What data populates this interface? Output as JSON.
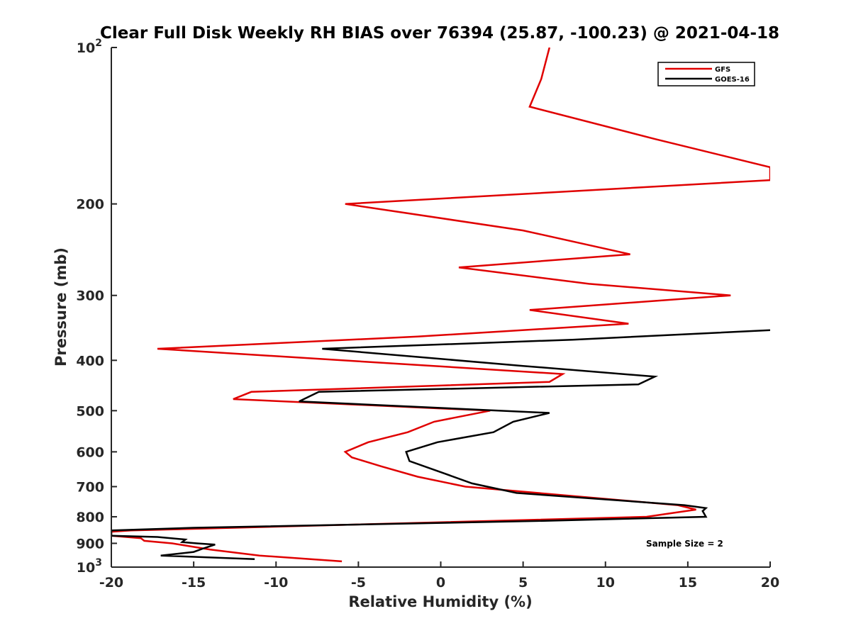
{
  "chart_data": {
    "type": "line",
    "title": "Clear Full Disk Weekly RH BIAS over 76394 (25.87, -100.23) @ 2021-04-18",
    "xlabel": "Relative Humidity (%)",
    "ylabel": "Pressure (mb)",
    "xlim": [
      -20,
      20
    ],
    "ylim": [
      100,
      1000
    ],
    "y_scale": "log",
    "y_reversed": true,
    "grid": false,
    "legend_position": "top-right",
    "x_ticks": [
      "-20",
      "-15",
      "-10",
      "-5",
      "0",
      "5",
      "10",
      "15",
      "20"
    ],
    "y_ticks": [
      {
        "value": 100,
        "label": "10",
        "sup": "2"
      },
      {
        "value": 200,
        "label": "200",
        "sup": ""
      },
      {
        "value": 300,
        "label": "300",
        "sup": ""
      },
      {
        "value": 400,
        "label": "400",
        "sup": ""
      },
      {
        "value": 500,
        "label": "500",
        "sup": ""
      },
      {
        "value": 600,
        "label": "600",
        "sup": ""
      },
      {
        "value": 700,
        "label": "700",
        "sup": ""
      },
      {
        "value": 800,
        "label": "800",
        "sup": ""
      },
      {
        "value": 900,
        "label": "900",
        "sup": ""
      },
      {
        "value": 1000,
        "label": "10",
        "sup": "3"
      }
    ],
    "annotation": "Sample Size = 2",
    "series": [
      {
        "name": "GFS",
        "color": "#e00000",
        "points": [
          [
            6.6,
            100
          ],
          [
            6.1,
            115
          ],
          [
            5.4,
            130
          ],
          [
            13.0,
            150
          ],
          [
            20.0,
            170
          ],
          [
            20.0,
            180
          ],
          [
            -5.8,
            200
          ],
          [
            5.0,
            225
          ],
          [
            11.5,
            250
          ],
          [
            1.1,
            265
          ],
          [
            9.0,
            285
          ],
          [
            17.6,
            300
          ],
          [
            5.4,
            320
          ],
          [
            11.4,
            340
          ],
          [
            -1.4,
            360
          ],
          [
            -17.2,
            380
          ],
          [
            7.4,
            425
          ],
          [
            6.6,
            440
          ],
          [
            -11.5,
            460
          ],
          [
            -12.6,
            475
          ],
          [
            3.0,
            500
          ],
          [
            -0.4,
            525
          ],
          [
            -2.0,
            550
          ],
          [
            -4.4,
            575
          ],
          [
            -5.8,
            600
          ],
          [
            -5.4,
            615
          ],
          [
            -3.6,
            640
          ],
          [
            -1.4,
            670
          ],
          [
            1.5,
            700
          ],
          [
            14.4,
            760
          ],
          [
            15.5,
            775
          ],
          [
            12.5,
            800
          ],
          [
            -18.8,
            850
          ],
          [
            -20.0,
            855
          ],
          [
            -20.0,
            870
          ],
          [
            -18.2,
            880
          ],
          [
            -18.0,
            890
          ],
          [
            -16.3,
            900
          ],
          [
            -14.0,
            925
          ],
          [
            -11.0,
            950
          ],
          [
            -6.0,
            975
          ]
        ]
      },
      {
        "name": "GOES-16",
        "color": "#000000",
        "points": [
          [
            20.0,
            350
          ],
          [
            8.0,
            365
          ],
          [
            -7.2,
            380
          ],
          [
            5.0,
            410
          ],
          [
            13.0,
            430
          ],
          [
            12.0,
            445
          ],
          [
            -7.4,
            460
          ],
          [
            -8.6,
            480
          ],
          [
            6.6,
            505
          ],
          [
            4.4,
            525
          ],
          [
            3.2,
            550
          ],
          [
            -0.2,
            575
          ],
          [
            -2.1,
            600
          ],
          [
            -1.9,
            625
          ],
          [
            0.2,
            660
          ],
          [
            1.9,
            690
          ],
          [
            4.6,
            720
          ],
          [
            14.8,
            760
          ],
          [
            16.1,
            770
          ],
          [
            15.9,
            780
          ],
          [
            16.1,
            800
          ],
          [
            5.9,
            815
          ],
          [
            -15.0,
            840
          ],
          [
            -20.0,
            850
          ],
          [
            -20.0,
            870
          ],
          [
            -17.2,
            875
          ],
          [
            -15.5,
            885
          ],
          [
            -15.7,
            895
          ],
          [
            -14.8,
            900
          ],
          [
            -13.7,
            905
          ],
          [
            -14.4,
            920
          ],
          [
            -15.0,
            935
          ],
          [
            -17.0,
            950
          ],
          [
            -11.3,
            965
          ]
        ]
      }
    ]
  }
}
